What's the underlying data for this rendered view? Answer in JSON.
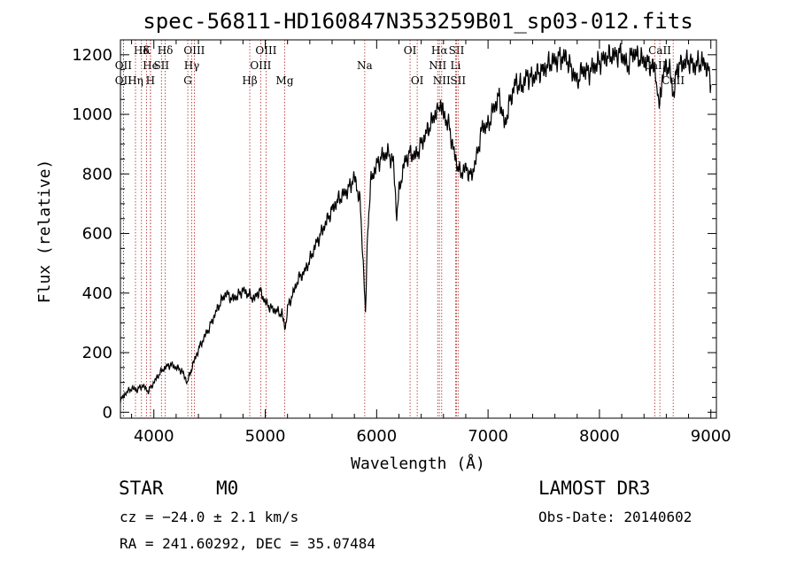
{
  "chart_data": {
    "type": "line",
    "title": "spec-56811-HD160847N353259B01_sp03-012.fits",
    "xlabel": "Wavelength (Å)",
    "ylabel": "Flux (relative)",
    "xlim": [
      3700,
      9050
    ],
    "ylim": [
      -20,
      1250
    ],
    "xticks": [
      4000,
      5000,
      6000,
      7000,
      8000,
      9000
    ],
    "yticks": [
      0,
      200,
      400,
      600,
      800,
      1000,
      1200
    ],
    "series": [
      {
        "name": "flux",
        "x": [
          3700,
          3750,
          3800,
          3850,
          3900,
          3950,
          4000,
          4050,
          4100,
          4150,
          4200,
          4250,
          4300,
          4350,
          4400,
          4450,
          4500,
          4550,
          4600,
          4650,
          4700,
          4750,
          4800,
          4850,
          4900,
          4950,
          5000,
          5050,
          5100,
          5150,
          5180,
          5200,
          5250,
          5300,
          5350,
          5400,
          5450,
          5500,
          5550,
          5600,
          5650,
          5700,
          5750,
          5800,
          5850,
          5880,
          5900,
          5920,
          5950,
          6000,
          6050,
          6100,
          6150,
          6180,
          6200,
          6250,
          6300,
          6350,
          6400,
          6450,
          6500,
          6550,
          6563,
          6600,
          6650,
          6700,
          6750,
          6800,
          6850,
          6900,
          6950,
          7000,
          7050,
          7100,
          7150,
          7200,
          7250,
          7300,
          7350,
          7400,
          7450,
          7500,
          7550,
          7600,
          7650,
          7700,
          7750,
          7800,
          7850,
          7900,
          7950,
          8000,
          8050,
          8100,
          8150,
          8200,
          8250,
          8300,
          8350,
          8400,
          8450,
          8500,
          8542,
          8550,
          8600,
          8650,
          8662,
          8700,
          8750,
          8800,
          8850,
          8900,
          8950,
          8980,
          9000
        ],
        "y": [
          40,
          65,
          80,
          75,
          90,
          70,
          100,
          130,
          150,
          160,
          150,
          140,
          100,
          160,
          210,
          250,
          285,
          330,
          370,
          400,
          380,
          390,
          410,
          395,
          380,
          410,
          370,
          350,
          340,
          330,
          280,
          350,
          400,
          450,
          470,
          510,
          560,
          600,
          640,
          680,
          710,
          730,
          750,
          790,
          710,
          500,
          330,
          620,
          780,
          830,
          860,
          870,
          840,
          660,
          740,
          840,
          870,
          860,
          900,
          940,
          980,
          1020,
          1030,
          1000,
          960,
          860,
          800,
          820,
          790,
          860,
          960,
          960,
          1020,
          1060,
          960,
          1050,
          1110,
          1090,
          1130,
          1120,
          1140,
          1150,
          1170,
          1180,
          1190,
          1190,
          1150,
          1110,
          1150,
          1140,
          1160,
          1175,
          1190,
          1195,
          1200,
          1205,
          1160,
          1210,
          1190,
          1180,
          1170,
          1150,
          1020,
          1090,
          1170,
          1120,
          1050,
          1160,
          1170,
          1180,
          1160,
          1175,
          1170,
          1140,
          1100
        ]
      }
    ],
    "line_markers": [
      {
        "label": "Hδ",
        "wl": 3889,
        "row": 0
      },
      {
        "label": "OII",
        "wl": 3727,
        "row": 1
      },
      {
        "label": "OII",
        "wl": 3727,
        "row": 2
      },
      {
        "label": "He",
        "wl": 3970,
        "row": 1
      },
      {
        "label": "Hη",
        "wl": 3835,
        "row": 2
      },
      {
        "label": "K",
        "wl": 3934,
        "row": 0
      },
      {
        "label": "SII",
        "wl": 4068,
        "row": 1
      },
      {
        "label": "H",
        "wl": 3969,
        "row": 2
      },
      {
        "label": "Hδ",
        "wl": 4102,
        "row": 0
      },
      {
        "label": "OIII",
        "wl": 4363,
        "row": 0
      },
      {
        "label": "Hγ",
        "wl": 4340,
        "row": 1
      },
      {
        "label": "G",
        "wl": 4305,
        "row": 2
      },
      {
        "label": "Hβ",
        "wl": 4861,
        "row": 2
      },
      {
        "label": "OIII",
        "wl": 5007,
        "row": 0
      },
      {
        "label": "OIII",
        "wl": 4959,
        "row": 1
      },
      {
        "label": "Mg",
        "wl": 5175,
        "row": 2
      },
      {
        "label": "Na",
        "wl": 5893,
        "row": 1
      },
      {
        "label": "OI",
        "wl": 6300,
        "row": 0
      },
      {
        "label": "OI",
        "wl": 6364,
        "row": 2
      },
      {
        "label": "Hα",
        "wl": 6563,
        "row": 0
      },
      {
        "label": "NII",
        "wl": 6548,
        "row": 1
      },
      {
        "label": "NII",
        "wl": 6584,
        "row": 2
      },
      {
        "label": "SII",
        "wl": 6717,
        "row": 0
      },
      {
        "label": "Li",
        "wl": 6708,
        "row": 1
      },
      {
        "label": "SII",
        "wl": 6731,
        "row": 2
      },
      {
        "label": "CaII",
        "wl": 8542,
        "row": 0
      },
      {
        "label": "CaII",
        "wl": 8498,
        "row": 1
      },
      {
        "label": "CaII",
        "wl": 8662,
        "row": 2
      }
    ]
  },
  "info": {
    "object_class": "STAR",
    "subclass": "M0",
    "survey": "LAMOST DR3",
    "redshift": "cz = −24.0 ± 2.1 km/s",
    "obs_date": "Obs-Date: 20140602",
    "coords": "RA = 241.60292, DEC =  35.07484"
  }
}
